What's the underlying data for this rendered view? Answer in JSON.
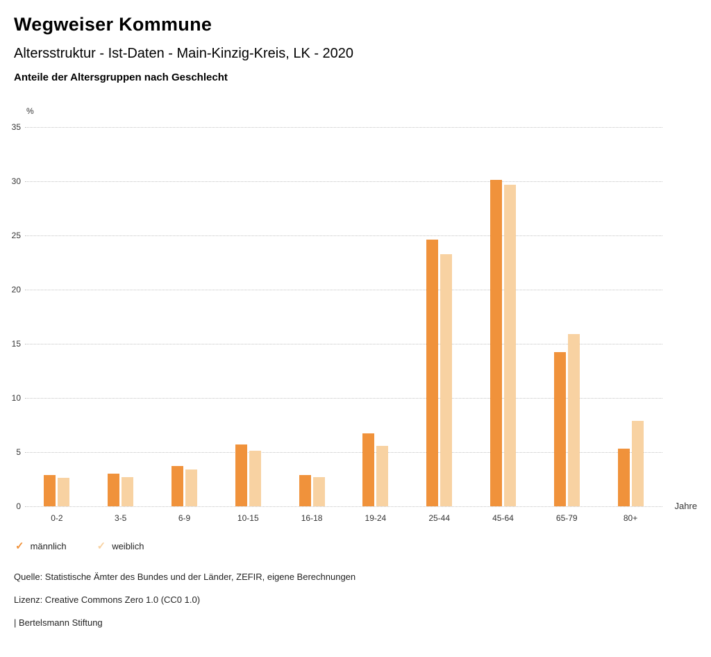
{
  "header": {
    "title": "Wegweiser Kommune",
    "subtitle": "Altersstruktur - Ist-Daten - Main-Kinzig-Kreis, LK - 2020",
    "caption": "Anteile der Altersgruppen nach Geschlecht"
  },
  "chart_data": {
    "type": "bar",
    "title": "Anteile der Altersgruppen nach Geschlecht",
    "unit_y": "%",
    "unit_x": "Jahre",
    "ylim": [
      0,
      35
    ],
    "ytick_step": 5,
    "grid": "horizontal-dotted",
    "legend_position": "bottom-left",
    "categories": [
      "0-2",
      "3-5",
      "6-9",
      "10-15",
      "16-18",
      "19-24",
      "25-44",
      "45-64",
      "65-79",
      "80+"
    ],
    "series": [
      {
        "name": "männlich",
        "color": "#f0923b",
        "values": [
          2.9,
          3.0,
          3.7,
          5.7,
          2.9,
          6.7,
          24.6,
          30.1,
          14.2,
          5.3
        ]
      },
      {
        "name": "weiblich",
        "color": "#f8d2a2",
        "values": [
          2.6,
          2.7,
          3.4,
          5.1,
          2.7,
          5.6,
          23.3,
          29.7,
          15.9,
          7.9
        ]
      }
    ]
  },
  "legend": {
    "check_icon": "✓"
  },
  "footer": {
    "source": "Quelle: Statistische Ämter des Bundes und der Länder, ZEFIR, eigene Berechnungen",
    "license": "Lizenz: Creative Commons Zero 1.0 (CC0 1.0)",
    "attribution": "| Bertelsmann Stiftung"
  }
}
